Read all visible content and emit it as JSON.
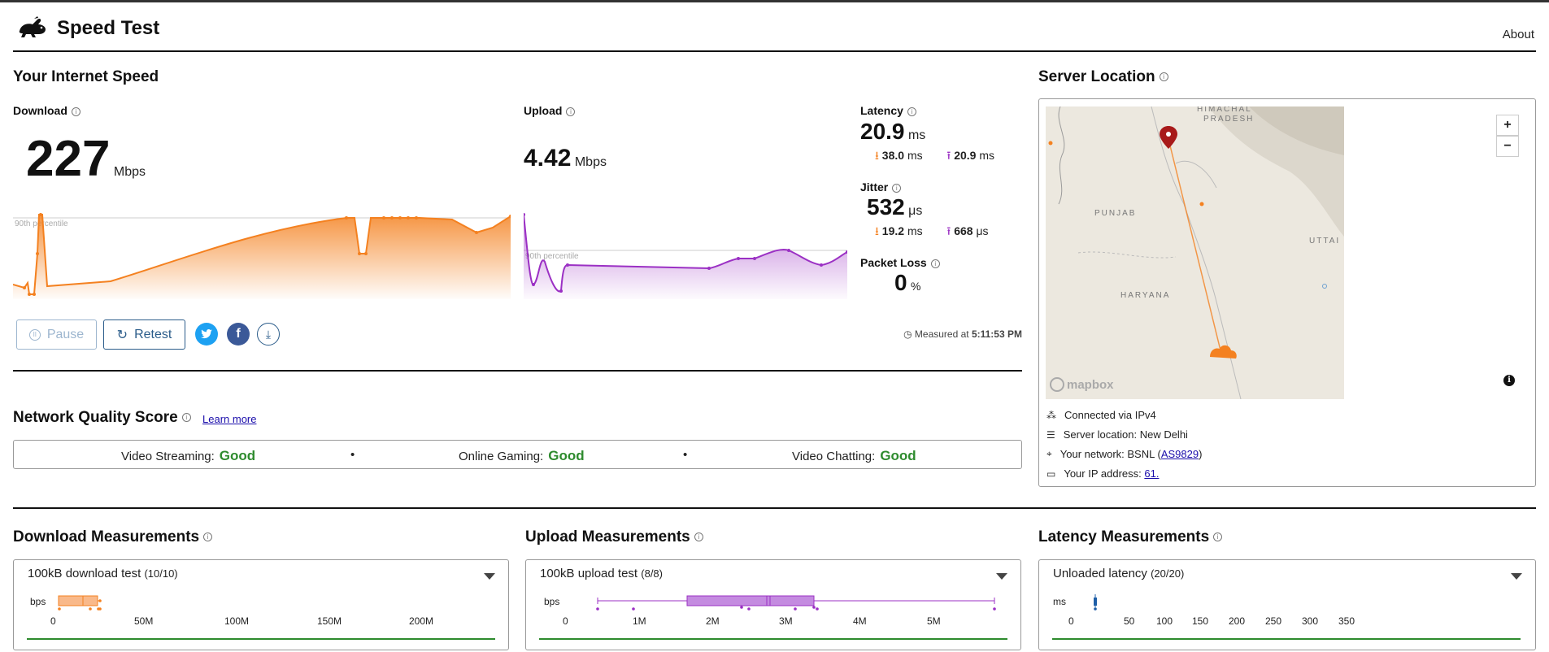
{
  "header": {
    "title": "Speed Test",
    "about": "About"
  },
  "speed": {
    "title": "Your Internet Speed",
    "download": {
      "label": "Download",
      "value": "227",
      "unit": "Mbps",
      "percentile": "90th percentile"
    },
    "upload": {
      "label": "Upload",
      "value": "4.42",
      "unit": "Mbps",
      "percentile": "90th percentile"
    },
    "latency": {
      "label": "Latency",
      "value": "20.9",
      "unit": "ms",
      "down": "38.0",
      "down_unit": "ms",
      "up": "20.9",
      "up_unit": "ms"
    },
    "jitter": {
      "label": "Jitter",
      "value": "532",
      "unit": "μs",
      "down": "19.2",
      "down_unit": "ms",
      "up": "668",
      "up_unit": "μs"
    },
    "packet_loss": {
      "label": "Packet Loss",
      "value": "0",
      "unit": "%"
    },
    "pause": "Pause",
    "retest": "Retest",
    "measured_prefix": "Measured at",
    "measured_time": "5:11:53 PM"
  },
  "quality": {
    "title": "Network Quality Score",
    "learn_more": "Learn more",
    "items": [
      {
        "label": "Video Streaming:",
        "rating": "Good"
      },
      {
        "label": "Online Gaming:",
        "rating": "Good"
      },
      {
        "label": "Video Chatting:",
        "rating": "Good"
      }
    ],
    "dot": "•"
  },
  "server": {
    "title": "Server Location",
    "map_labels": {
      "himachal": "HIMACHAL",
      "pradesh": "PRADESH",
      "punjab": "PUNJAB",
      "haryana": "HARYANA",
      "uttar": "UTTAI",
      "mapbox": "mapbox"
    },
    "zoom_in": "+",
    "zoom_out": "−",
    "connected": "Connected via IPv4",
    "location": "Server location: New Delhi",
    "network_prefix": "Your network: BSNL (",
    "network_link": "AS9829",
    "network_suffix": ")",
    "ip_prefix": "Your IP address:",
    "ip_link": "61."
  },
  "download_meas": {
    "title": "Download Measurements",
    "test": "100kB download test",
    "count": "(10/10)",
    "unit": "bps",
    "ticks": [
      "0",
      "50M",
      "100M",
      "150M",
      "200M"
    ]
  },
  "upload_meas": {
    "title": "Upload Measurements",
    "test": "100kB upload test",
    "count": "(8/8)",
    "unit": "bps",
    "ticks": [
      "0",
      "1M",
      "2M",
      "3M",
      "4M",
      "5M"
    ]
  },
  "latency_meas": {
    "title": "Latency Measurements",
    "test": "Unloaded latency",
    "count": "(20/20)",
    "unit": "ms",
    "ticks": [
      "0",
      "50",
      "100",
      "150",
      "200",
      "250",
      "300",
      "350"
    ]
  },
  "colors": {
    "download": "#f48120",
    "upload": "#9b30c4",
    "good": "#2e8b2e",
    "link": "#2b5c8a"
  }
}
